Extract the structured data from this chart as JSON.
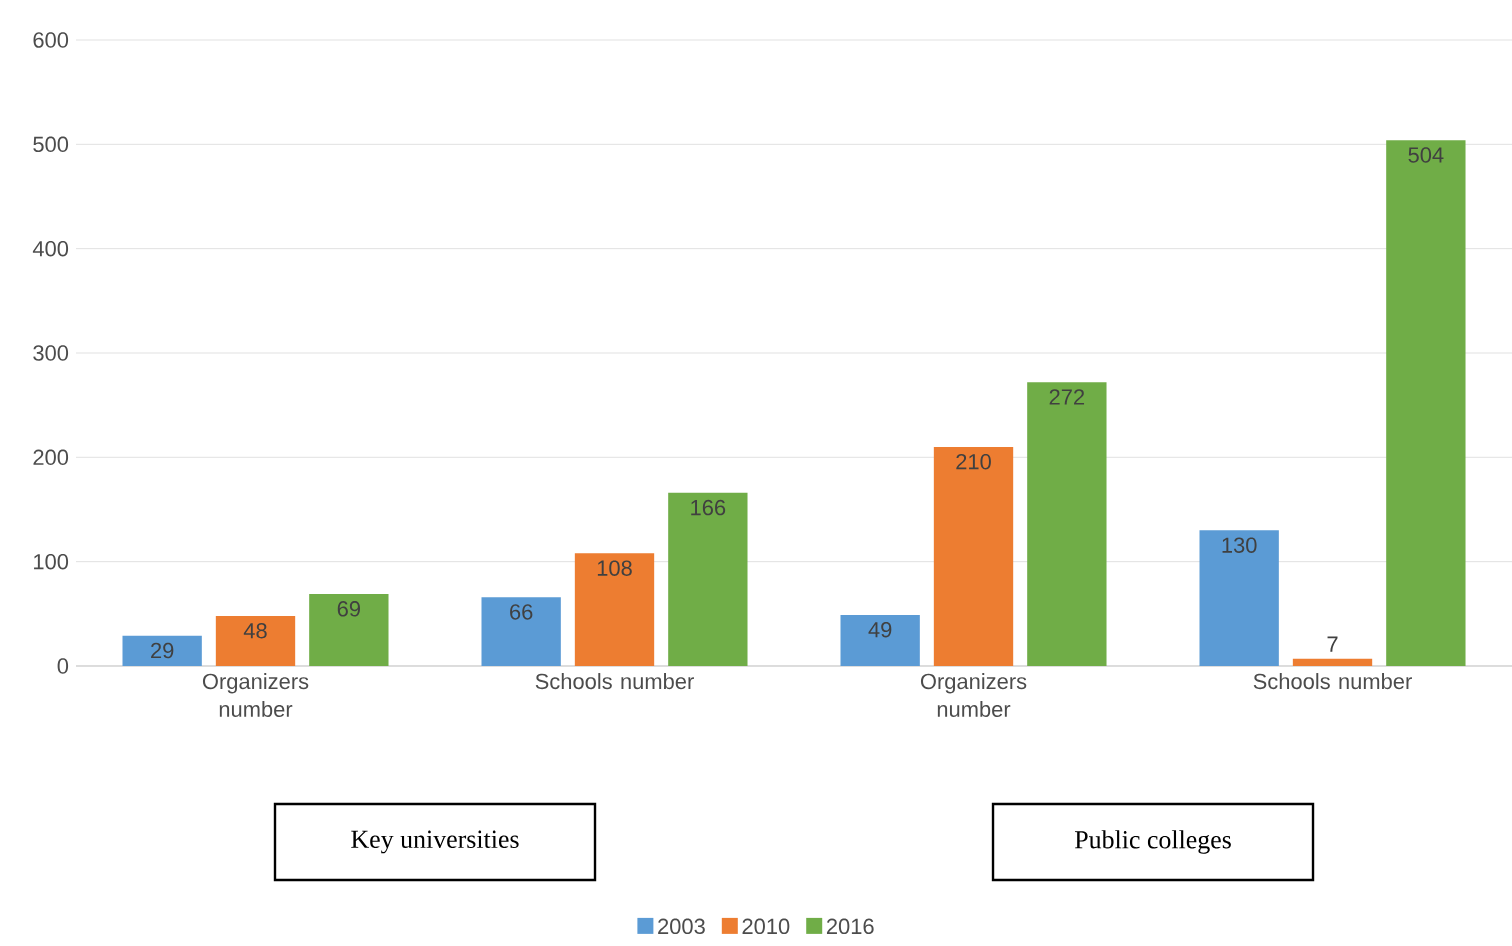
{
  "chart_data": {
    "type": "bar",
    "categories": [
      "Organizers number",
      "Schools number",
      "Organizers number",
      "Schools number"
    ],
    "series": [
      {
        "name": "2003",
        "color": "#5b9bd5",
        "values": [
          29,
          66,
          49,
          130
        ]
      },
      {
        "name": "2010",
        "color": "#ed7d31",
        "values": [
          48,
          108,
          210,
          7
        ]
      },
      {
        "name": "2016",
        "color": "#70ad47",
        "values": [
          69,
          166,
          272,
          504
        ]
      }
    ],
    "ylim": [
      0,
      600
    ],
    "yticks": [
      0,
      100,
      200,
      300,
      400,
      500,
      600
    ],
    "grid": "y",
    "legend": "bottom",
    "data_labels": true,
    "annotations": [
      "Key universities",
      "Public colleges"
    ]
  }
}
